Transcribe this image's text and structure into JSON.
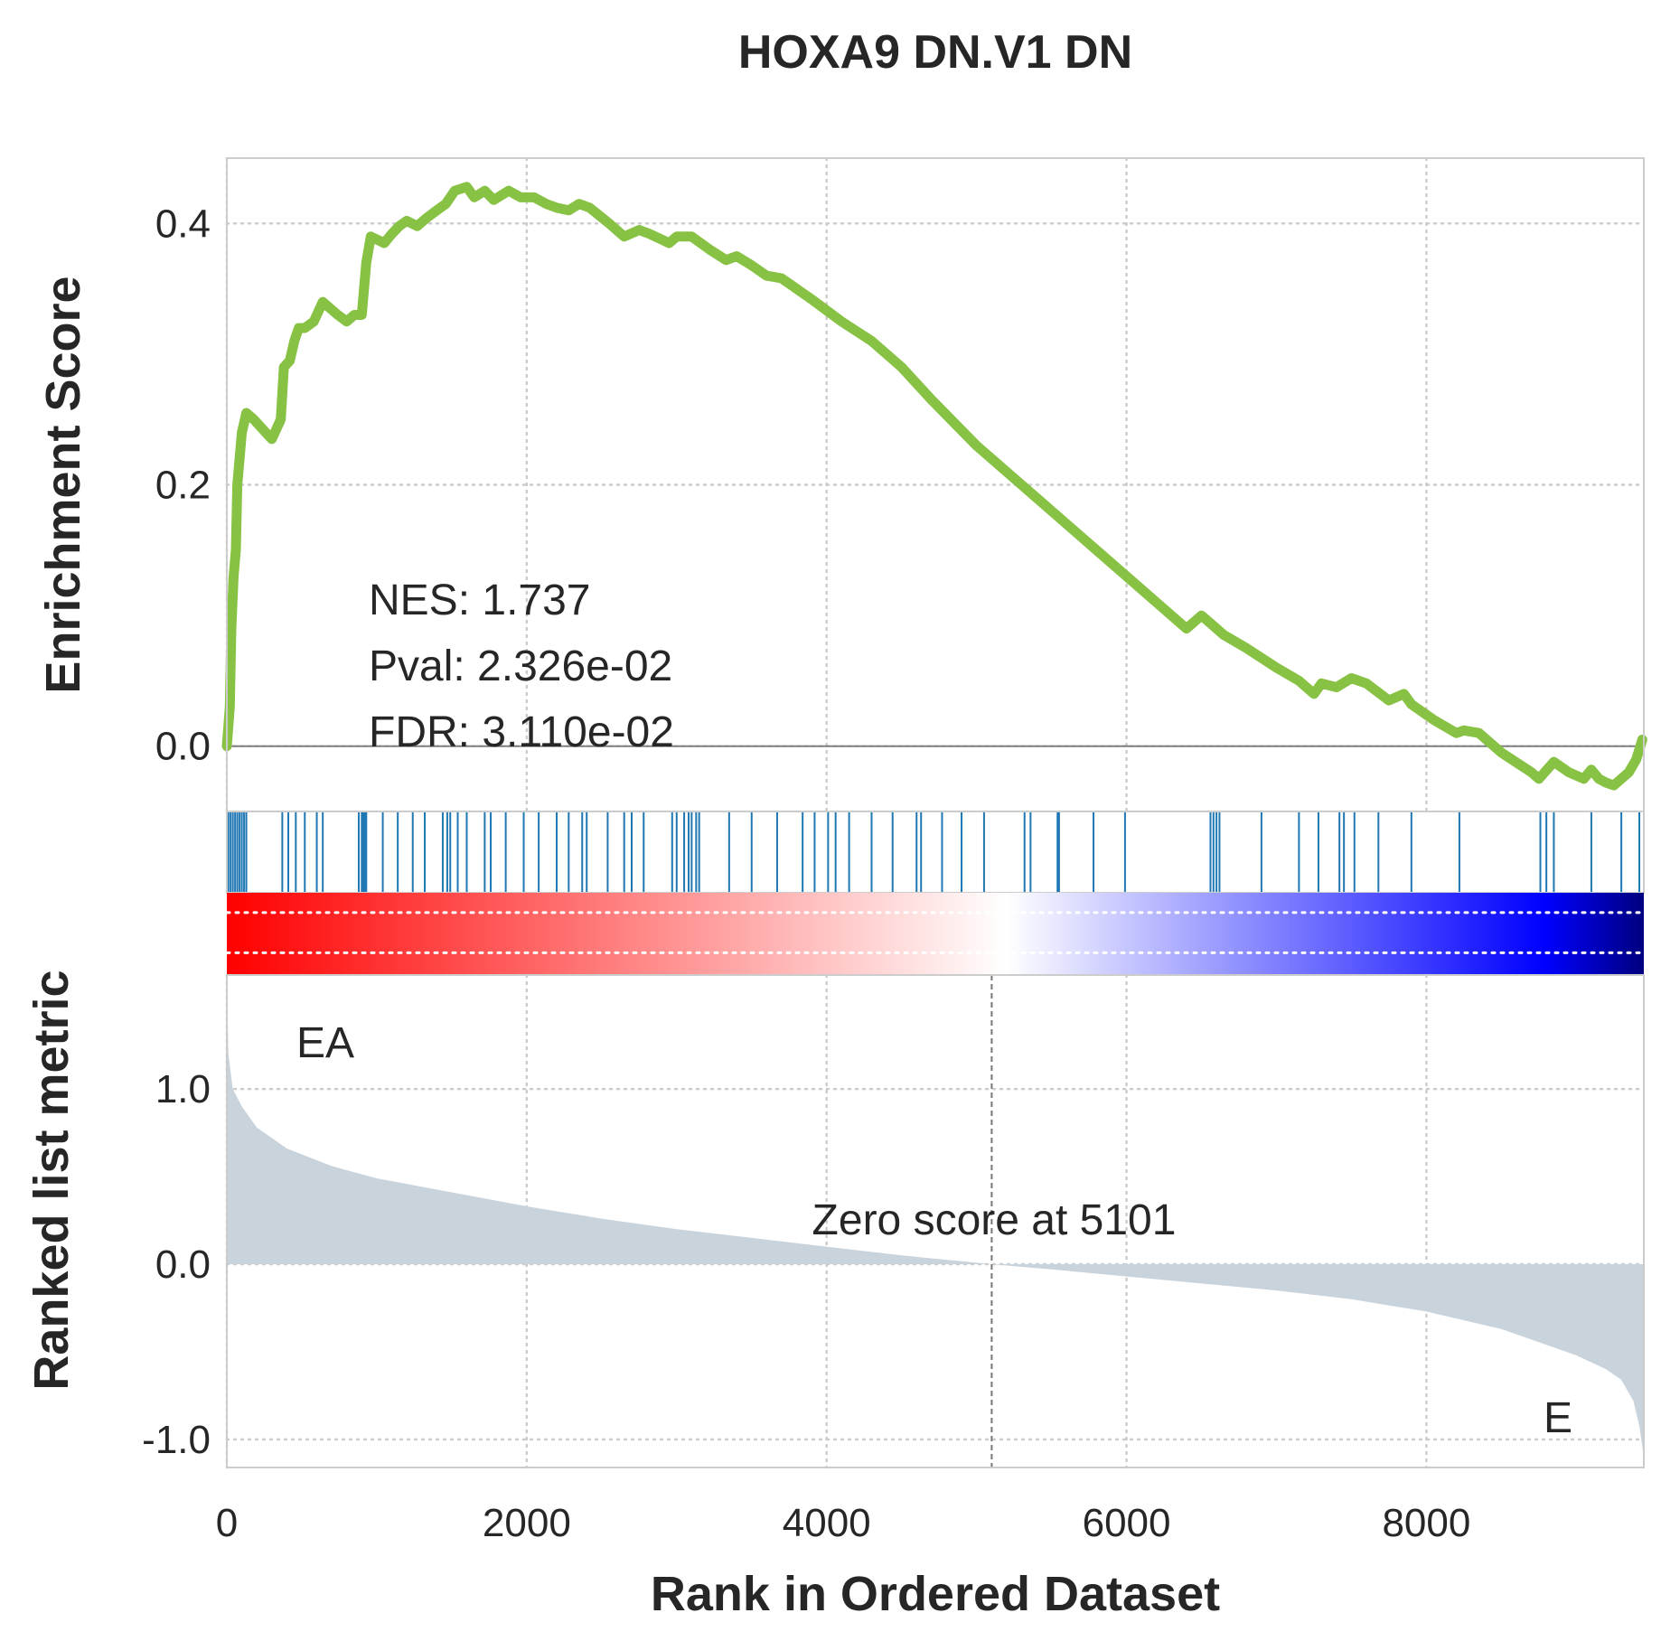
{
  "chart_data": {
    "type": "line",
    "title": "HOXA9 DN.V1 DN",
    "xlabel": "Rank in Ordered Dataset",
    "xlim": [
      0,
      9450
    ],
    "x_ticks": [
      0,
      2000,
      4000,
      6000,
      8000
    ],
    "x_tick_labels": [
      "0",
      "2000",
      "4000",
      "6000",
      "8000"
    ],
    "enrichment": {
      "ylabel": "Enrichment Score",
      "ylim": [
        -0.05,
        0.45
      ],
      "y_ticks": [
        0.0,
        0.2,
        0.4
      ],
      "y_tick_labels": [
        "0.0",
        "0.2",
        "0.4"
      ],
      "color": "#88c244",
      "series": [
        {
          "x": [
            0,
            20,
            30,
            45,
            60,
            70,
            85,
            100,
            130,
            180,
            260,
            300,
            360,
            380,
            420,
            450,
            480,
            520,
            580,
            640,
            740,
            800,
            850,
            900,
            930,
            960,
            1050,
            1100,
            1150,
            1200,
            1270,
            1330,
            1400,
            1460,
            1520,
            1600,
            1650,
            1720,
            1780,
            1880,
            1960,
            2050,
            2130,
            2200,
            2280,
            2350,
            2420,
            2550,
            2650,
            2750,
            2820,
            2950,
            3000,
            3100,
            3220,
            3330,
            3400,
            3500,
            3600,
            3700,
            3900,
            4100,
            4300,
            4500,
            4700,
            5000,
            5300,
            5600,
            5900,
            6200,
            6400,
            6500,
            6550,
            6650,
            6800,
            7000,
            7150,
            7250,
            7300,
            7400,
            7500,
            7600,
            7750,
            7850,
            7900,
            8050,
            8200,
            8250,
            8350,
            8500,
            8700,
            8750,
            8850,
            8950,
            9050,
            9100,
            9150,
            9200,
            9250,
            9300,
            9350,
            9400,
            9440
          ],
          "y": [
            0.0,
            0.03,
            0.09,
            0.13,
            0.15,
            0.2,
            0.22,
            0.24,
            0.255,
            0.25,
            0.24,
            0.235,
            0.25,
            0.29,
            0.295,
            0.31,
            0.32,
            0.32,
            0.325,
            0.34,
            0.33,
            0.325,
            0.33,
            0.33,
            0.37,
            0.39,
            0.385,
            0.392,
            0.398,
            0.402,
            0.398,
            0.404,
            0.41,
            0.415,
            0.425,
            0.428,
            0.42,
            0.425,
            0.418,
            0.425,
            0.42,
            0.42,
            0.415,
            0.412,
            0.41,
            0.415,
            0.412,
            0.4,
            0.39,
            0.395,
            0.392,
            0.385,
            0.39,
            0.39,
            0.38,
            0.372,
            0.375,
            0.368,
            0.36,
            0.358,
            0.342,
            0.325,
            0.31,
            0.29,
            0.265,
            0.23,
            0.2,
            0.17,
            0.14,
            0.11,
            0.09,
            0.1,
            0.095,
            0.085,
            0.075,
            0.06,
            0.05,
            0.04,
            0.048,
            0.045,
            0.052,
            0.048,
            0.035,
            0.04,
            0.032,
            0.02,
            0.01,
            0.012,
            0.01,
            -0.005,
            -0.02,
            -0.025,
            -0.012,
            -0.02,
            -0.025,
            -0.018,
            -0.025,
            -0.028,
            -0.03,
            -0.025,
            -0.02,
            -0.01,
            0.005
          ]
        }
      ],
      "annotations": [
        "NES: 1.737",
        "Pval: 2.326e-02",
        "FDR: 3.110e-02"
      ]
    },
    "hits": {
      "color": "#1f77b4",
      "positions": [
        10,
        25,
        40,
        55,
        70,
        85,
        100,
        115,
        130,
        370,
        410,
        460,
        520,
        600,
        640,
        880,
        900,
        910,
        920,
        930,
        1040,
        1140,
        1240,
        1320,
        1440,
        1470,
        1490,
        1540,
        1600,
        1720,
        1760,
        1860,
        1980,
        2080,
        2200,
        2280,
        2370,
        2400,
        2540,
        2650,
        2700,
        2780,
        2970,
        3000,
        3050,
        3080,
        3100,
        3130,
        3150,
        3350,
        3500,
        3670,
        3840,
        3920,
        4010,
        4060,
        4150,
        4300,
        4440,
        4600,
        4630,
        4770,
        4900,
        5050,
        5320,
        5360,
        5540,
        5550,
        5780,
        5990,
        6560,
        6580,
        6600,
        6620,
        6900,
        7150,
        7280,
        7420,
        7450,
        7520,
        7680,
        7900,
        8220,
        8760,
        8800,
        8850,
        9100,
        9300,
        9420
      ]
    },
    "color_strip": {
      "colors": [
        "#ff0000",
        "#ffffff",
        "#0000ff",
        "#00007f"
      ]
    },
    "ranked_metric": {
      "ylabel": "Ranked list metric",
      "ylim": [
        -1.16,
        1.65
      ],
      "y_ticks": [
        -1.0,
        0.0,
        1.0
      ],
      "y_tick_labels": [
        "-1.0",
        "0.0",
        "1.0"
      ],
      "fill_color": "#c9d3dc",
      "x": [
        0,
        10,
        40,
        100,
        200,
        400,
        700,
        1000,
        1500,
        2000,
        2500,
        3000,
        3500,
        4000,
        4500,
        5101,
        5500,
        6000,
        6500,
        7000,
        7500,
        8000,
        8500,
        8800,
        9000,
        9200,
        9300,
        9380,
        9420,
        9450
      ],
      "y": [
        1.6,
        1.2,
        1.0,
        0.9,
        0.78,
        0.66,
        0.56,
        0.49,
        0.41,
        0.33,
        0.26,
        0.2,
        0.15,
        0.1,
        0.05,
        0.0,
        -0.03,
        -0.07,
        -0.11,
        -0.15,
        -0.2,
        -0.27,
        -0.37,
        -0.46,
        -0.52,
        -0.6,
        -0.66,
        -0.78,
        -0.92,
        -1.1
      ],
      "zero_crossing": 5101,
      "zero_label": "Zero score at 5101",
      "pos_label": "EA",
      "pos_color": "#ff0000",
      "neg_label": "E",
      "neg_color": "#0000ff"
    }
  }
}
